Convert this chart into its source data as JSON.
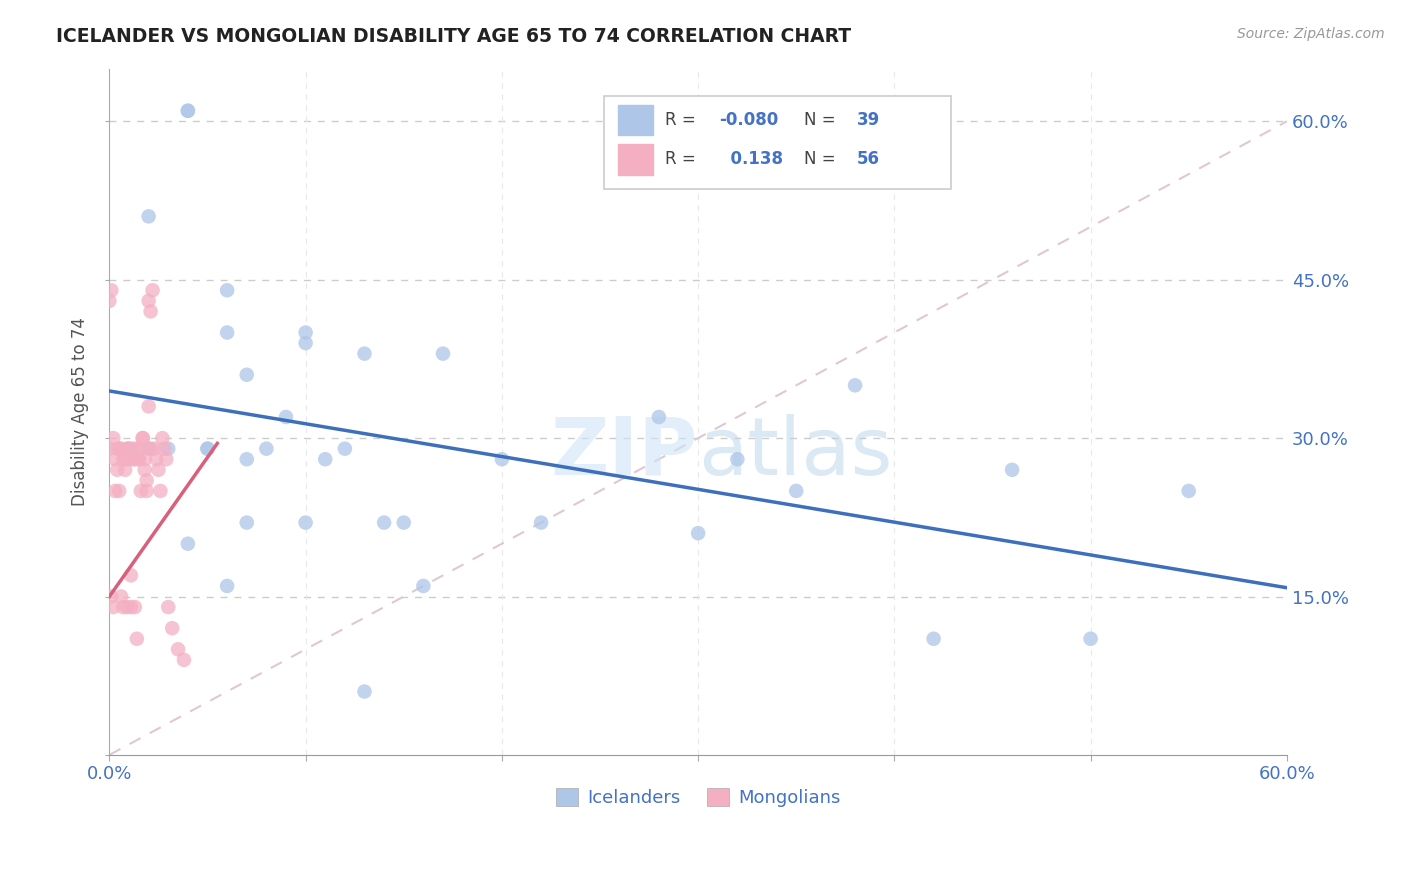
{
  "title": "ICELANDER VS MONGOLIAN DISABILITY AGE 65 TO 74 CORRELATION CHART",
  "source": "Source: ZipAtlas.com",
  "ylabel": "Disability Age 65 to 74",
  "watermark": "ZIPatlas",
  "icelander_r": "-0.080",
  "icelander_n": "39",
  "mongolian_r": "0.138",
  "mongolian_n": "56",
  "xlim": [
    0.0,
    0.6
  ],
  "ylim": [
    0.0,
    0.65
  ],
  "icelander_color": "#aec6e8",
  "mongolian_color": "#f4afc3",
  "icelander_line_color": "#3d6fbc",
  "mongolian_line_color": "#d95f7a",
  "diag_line_color": "#e0c8d0",
  "background_color": "#ffffff",
  "icelanders_x": [
    0.02,
    0.04,
    0.04,
    0.05,
    0.06,
    0.06,
    0.07,
    0.07,
    0.08,
    0.09,
    0.1,
    0.1,
    0.11,
    0.12,
    0.13,
    0.14,
    0.15,
    0.16,
    0.17,
    0.2,
    0.22,
    0.28,
    0.3,
    0.32,
    0.35,
    0.38,
    0.42,
    0.46,
    0.5,
    0.55,
    0.01,
    0.02,
    0.03,
    0.04,
    0.05,
    0.06,
    0.07,
    0.1,
    0.13
  ],
  "icelanders_y": [
    0.51,
    0.61,
    0.61,
    0.29,
    0.44,
    0.4,
    0.36,
    0.28,
    0.29,
    0.32,
    0.4,
    0.39,
    0.28,
    0.29,
    0.38,
    0.22,
    0.22,
    0.16,
    0.38,
    0.28,
    0.22,
    0.32,
    0.21,
    0.28,
    0.25,
    0.35,
    0.11,
    0.27,
    0.11,
    0.25,
    0.29,
    0.29,
    0.29,
    0.2,
    0.29,
    0.16,
    0.22,
    0.22,
    0.06
  ],
  "mongolians_x": [
    0.0,
    0.0,
    0.001,
    0.001,
    0.002,
    0.002,
    0.003,
    0.003,
    0.004,
    0.004,
    0.005,
    0.005,
    0.006,
    0.006,
    0.007,
    0.007,
    0.008,
    0.008,
    0.009,
    0.009,
    0.01,
    0.01,
    0.011,
    0.011,
    0.012,
    0.012,
    0.013,
    0.013,
    0.014,
    0.014,
    0.015,
    0.015,
    0.016,
    0.016,
    0.017,
    0.017,
    0.018,
    0.018,
    0.019,
    0.019,
    0.02,
    0.02,
    0.021,
    0.021,
    0.022,
    0.023,
    0.024,
    0.025,
    0.026,
    0.027,
    0.028,
    0.029,
    0.03,
    0.032,
    0.035,
    0.038
  ],
  "mongolians_y": [
    0.43,
    0.29,
    0.44,
    0.15,
    0.3,
    0.14,
    0.28,
    0.25,
    0.29,
    0.27,
    0.29,
    0.25,
    0.29,
    0.15,
    0.28,
    0.14,
    0.28,
    0.27,
    0.29,
    0.14,
    0.29,
    0.28,
    0.17,
    0.14,
    0.29,
    0.28,
    0.28,
    0.14,
    0.29,
    0.11,
    0.28,
    0.28,
    0.29,
    0.25,
    0.3,
    0.3,
    0.28,
    0.27,
    0.26,
    0.25,
    0.43,
    0.33,
    0.42,
    0.29,
    0.44,
    0.29,
    0.28,
    0.27,
    0.25,
    0.3,
    0.29,
    0.28,
    0.14,
    0.12,
    0.1,
    0.09
  ],
  "xtick_positions": [
    0.0,
    0.1,
    0.2,
    0.3,
    0.4,
    0.5,
    0.6
  ],
  "ytick_positions": [
    0.0,
    0.15,
    0.3,
    0.45,
    0.6
  ]
}
